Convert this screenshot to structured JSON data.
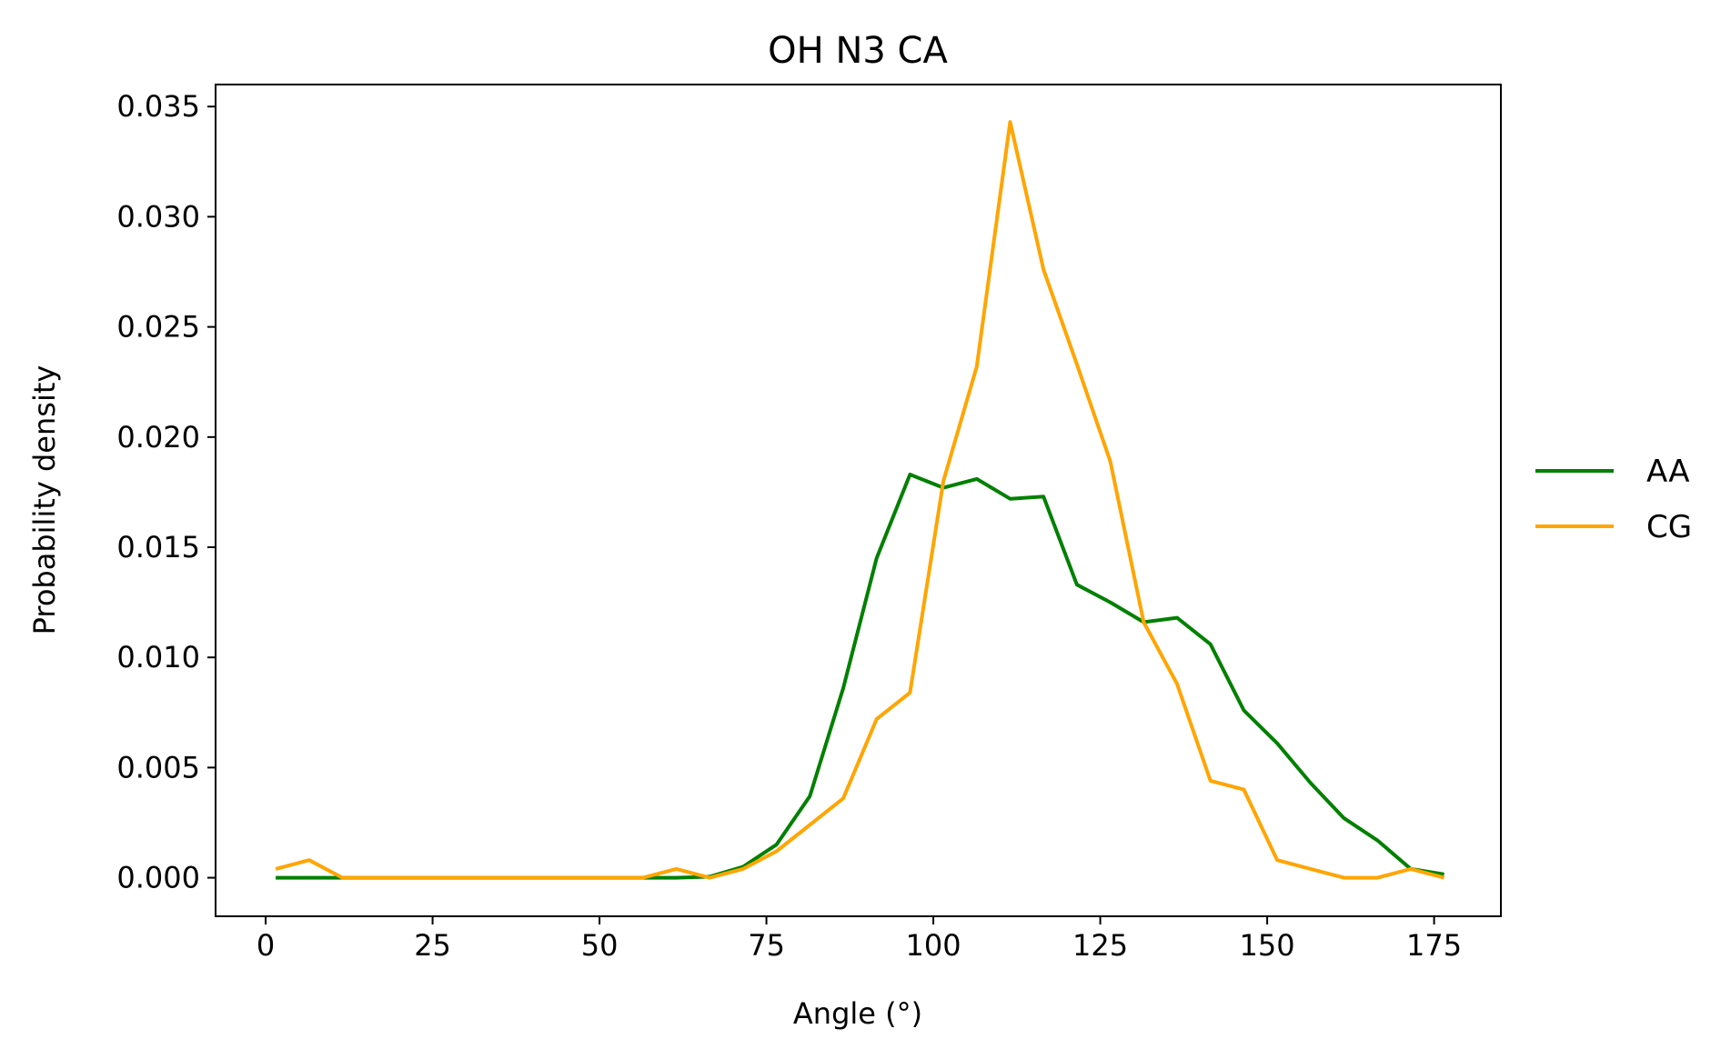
{
  "chart_data": {
    "type": "line",
    "title": "OH N3 CA",
    "xlabel": "Angle (°)",
    "ylabel": "Probability density",
    "xlim": [
      -7.5,
      185
    ],
    "ylim": [
      -0.00175,
      0.036
    ],
    "xticks": [
      0,
      25,
      50,
      75,
      100,
      125,
      150,
      175
    ],
    "yticks": [
      0.0,
      0.005,
      0.01,
      0.015,
      0.02,
      0.025,
      0.03,
      0.035
    ],
    "ytick_labels": [
      "0.000",
      "0.005",
      "0.010",
      "0.015",
      "0.020",
      "0.025",
      "0.030",
      "0.035"
    ],
    "grid": false,
    "legend_placement": "outside-right",
    "x": [
      1.5,
      6.5,
      11.5,
      16.5,
      21.5,
      26.5,
      31.5,
      36.5,
      41.5,
      46.5,
      51.5,
      56.5,
      61.5,
      66.5,
      71.5,
      76.5,
      81.5,
      86.5,
      91.5,
      96.5,
      101.5,
      106.5,
      111.5,
      116.5,
      121.5,
      126.5,
      131.5,
      136.5,
      141.5,
      146.5,
      151.5,
      156.5,
      161.5,
      166.5,
      171.5,
      176.5
    ],
    "series": [
      {
        "name": "AA",
        "color": "#008000",
        "values": [
          0.0,
          0.0,
          0.0,
          0.0,
          0.0,
          0.0,
          0.0,
          0.0,
          0.0,
          0.0,
          0.0,
          0.0,
          0.0,
          5e-05,
          0.0005,
          0.0015,
          0.0037,
          0.0086,
          0.0145,
          0.0183,
          0.0177,
          0.0181,
          0.0172,
          0.0173,
          0.0133,
          0.0125,
          0.0116,
          0.0118,
          0.0106,
          0.0076,
          0.0061,
          0.0043,
          0.0027,
          0.0017,
          0.0004,
          0.00015
        ]
      },
      {
        "name": "CG",
        "color": "#ffa500",
        "values": [
          0.0004,
          0.0008,
          0.0,
          0.0,
          0.0,
          0.0,
          0.0,
          0.0,
          0.0,
          0.0,
          0.0,
          0.0,
          0.0004,
          0.0,
          0.0004,
          0.0012,
          0.0024,
          0.0036,
          0.0072,
          0.0084,
          0.018,
          0.0232,
          0.0343,
          0.0276,
          0.0233,
          0.0189,
          0.0116,
          0.0088,
          0.0044,
          0.004,
          0.0008,
          0.0004,
          0.0,
          0.0,
          0.0004,
          0.0
        ]
      }
    ]
  }
}
